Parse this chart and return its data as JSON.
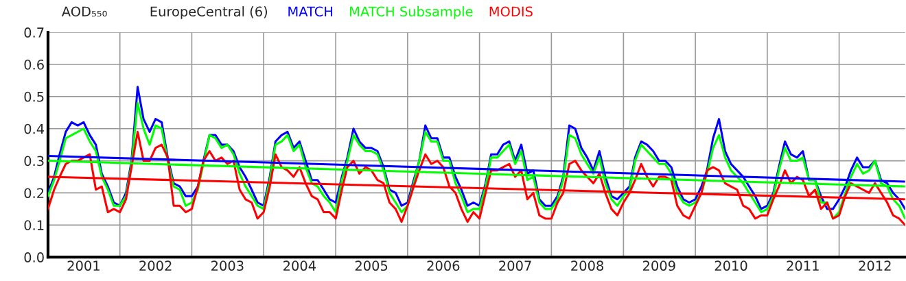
{
  "chart_data": {
    "type": "line",
    "title": "AOD₅₅₀",
    "subtitle": "EuropeCentral (6)",
    "x": [
      "2001-01",
      "2001-02",
      "2001-03",
      "2001-04",
      "2001-05",
      "2001-06",
      "2001-07",
      "2001-08",
      "2001-09",
      "2001-10",
      "2001-11",
      "2001-12",
      "2002-01",
      "2002-02",
      "2002-03",
      "2002-04",
      "2002-05",
      "2002-06",
      "2002-07",
      "2002-08",
      "2002-09",
      "2002-10",
      "2002-11",
      "2002-12",
      "2003-01",
      "2003-02",
      "2003-03",
      "2003-04",
      "2003-05",
      "2003-06",
      "2003-07",
      "2003-08",
      "2003-09",
      "2003-10",
      "2003-11",
      "2003-12",
      "2004-01",
      "2004-02",
      "2004-03",
      "2004-04",
      "2004-05",
      "2004-06",
      "2004-07",
      "2004-08",
      "2004-09",
      "2004-10",
      "2004-11",
      "2004-12",
      "2005-01",
      "2005-02",
      "2005-03",
      "2005-04",
      "2005-05",
      "2005-06",
      "2005-07",
      "2005-08",
      "2005-09",
      "2005-10",
      "2005-11",
      "2005-12",
      "2006-01",
      "2006-02",
      "2006-03",
      "2006-04",
      "2006-05",
      "2006-06",
      "2006-07",
      "2006-08",
      "2006-09",
      "2006-10",
      "2006-11",
      "2006-12",
      "2007-01",
      "2007-02",
      "2007-03",
      "2007-04",
      "2007-05",
      "2007-06",
      "2007-07",
      "2007-08",
      "2007-09",
      "2007-10",
      "2007-11",
      "2007-12",
      "2008-01",
      "2008-02",
      "2008-03",
      "2008-04",
      "2008-05",
      "2008-06",
      "2008-07",
      "2008-08",
      "2008-09",
      "2008-10",
      "2008-11",
      "2008-12",
      "2009-01",
      "2009-02",
      "2009-03",
      "2009-04",
      "2009-05",
      "2009-06",
      "2009-07",
      "2009-08",
      "2009-09",
      "2009-10",
      "2009-11",
      "2009-12",
      "2010-01",
      "2010-02",
      "2010-03",
      "2010-04",
      "2010-05",
      "2010-06",
      "2010-07",
      "2010-08",
      "2010-09",
      "2010-10",
      "2010-11",
      "2010-12",
      "2011-01",
      "2011-02",
      "2011-03",
      "2011-04",
      "2011-05",
      "2011-06",
      "2011-07",
      "2011-08",
      "2011-09",
      "2011-10",
      "2011-11",
      "2011-12",
      "2012-01",
      "2012-02",
      "2012-03",
      "2012-04",
      "2012-05",
      "2012-06",
      "2012-07",
      "2012-08",
      "2012-09",
      "2012-10",
      "2012-11",
      "2012-12"
    ],
    "xlim": [
      "2001-01-01",
      "2012-12-01"
    ],
    "ylim": [
      0,
      0.7
    ],
    "xticks": [
      {
        "value": "2001-07-01",
        "label": "2001"
      },
      {
        "value": "2002-07-01",
        "label": "2002"
      },
      {
        "value": "2003-07-01",
        "label": "2003"
      },
      {
        "value": "2004-07-01",
        "label": "2004"
      },
      {
        "value": "2005-07-01",
        "label": "2005"
      },
      {
        "value": "2006-07-01",
        "label": "2006"
      },
      {
        "value": "2007-07-01",
        "label": "2007"
      },
      {
        "value": "2008-07-01",
        "label": "2008"
      },
      {
        "value": "2009-07-01",
        "label": "2009"
      },
      {
        "value": "2010-07-01",
        "label": "2010"
      },
      {
        "value": "2011-07-01",
        "label": "2011"
      },
      {
        "value": "2012-07-01",
        "label": "2012"
      },
      {
        "value": "2002-01-01",
        "label": null
      },
      {
        "value": "2003-01-01",
        "label": null
      },
      {
        "value": "2004-01-01",
        "label": null
      },
      {
        "value": "2005-01-01",
        "label": null
      },
      {
        "value": "2006-01-01",
        "label": null
      },
      {
        "value": "2007-01-01",
        "label": null
      },
      {
        "value": "2008-01-01",
        "label": null
      },
      {
        "value": "2009-01-01",
        "label": null
      },
      {
        "value": "2010-01-01",
        "label": null
      },
      {
        "value": "2011-01-01",
        "label": null
      },
      {
        "value": "2012-01-01",
        "label": null
      }
    ],
    "yticks": [
      {
        "value": 0,
        "label": "0.0"
      },
      0.1,
      0.2,
      0.3,
      0.4,
      0.5,
      0.6,
      0.7
    ],
    "grid": true,
    "marker": "none",
    "line_style": "solid",
    "series": [
      {
        "name": "MATCH",
        "color": "#0000ff",
        "values": [
          0.2,
          0.25,
          0.32,
          0.39,
          0.42,
          0.41,
          0.42,
          0.38,
          0.35,
          0.26,
          0.22,
          0.17,
          0.16,
          0.2,
          0.3,
          0.53,
          0.43,
          0.39,
          0.43,
          0.42,
          0.31,
          0.23,
          0.22,
          0.19,
          0.19,
          0.22,
          0.3,
          0.38,
          0.38,
          0.35,
          0.35,
          0.33,
          0.28,
          0.25,
          0.21,
          0.17,
          0.16,
          0.25,
          0.36,
          0.38,
          0.39,
          0.34,
          0.36,
          0.3,
          0.24,
          0.24,
          0.21,
          0.18,
          0.17,
          0.25,
          0.31,
          0.4,
          0.36,
          0.34,
          0.34,
          0.33,
          0.28,
          0.21,
          0.2,
          0.16,
          0.17,
          0.24,
          0.3,
          0.41,
          0.37,
          0.37,
          0.31,
          0.31,
          0.25,
          0.21,
          0.16,
          0.17,
          0.16,
          0.23,
          0.32,
          0.32,
          0.35,
          0.36,
          0.3,
          0.35,
          0.26,
          0.27,
          0.18,
          0.16,
          0.16,
          0.19,
          0.25,
          0.41,
          0.4,
          0.34,
          0.31,
          0.27,
          0.33,
          0.25,
          0.19,
          0.18,
          0.2,
          0.22,
          0.31,
          0.36,
          0.35,
          0.33,
          0.3,
          0.3,
          0.28,
          0.22,
          0.18,
          0.17,
          0.18,
          0.22,
          0.27,
          0.37,
          0.43,
          0.33,
          0.29,
          0.27,
          0.25,
          0.22,
          0.19,
          0.15,
          0.16,
          0.2,
          0.28,
          0.36,
          0.32,
          0.31,
          0.33,
          0.24,
          0.24,
          0.19,
          0.15,
          0.15,
          0.18,
          0.22,
          0.27,
          0.31,
          0.28,
          0.28,
          0.3,
          0.24,
          0.23,
          0.2,
          0.18,
          0.15
        ]
      },
      {
        "name": "MATCH Subsample",
        "color": "#00ff00",
        "values": [
          0.19,
          0.24,
          0.3,
          0.37,
          0.38,
          0.39,
          0.4,
          0.36,
          0.33,
          0.25,
          0.21,
          0.16,
          0.16,
          0.19,
          0.29,
          0.48,
          0.4,
          0.35,
          0.41,
          0.4,
          0.3,
          0.22,
          0.21,
          0.16,
          0.17,
          0.21,
          0.29,
          0.38,
          0.37,
          0.34,
          0.35,
          0.32,
          0.26,
          0.22,
          0.19,
          0.16,
          0.15,
          0.24,
          0.35,
          0.36,
          0.38,
          0.33,
          0.35,
          0.28,
          0.23,
          0.22,
          0.19,
          0.17,
          0.14,
          0.24,
          0.3,
          0.38,
          0.35,
          0.33,
          0.33,
          0.32,
          0.27,
          0.2,
          0.17,
          0.14,
          0.16,
          0.23,
          0.3,
          0.39,
          0.36,
          0.36,
          0.3,
          0.3,
          0.23,
          0.19,
          0.14,
          0.15,
          0.15,
          0.22,
          0.31,
          0.31,
          0.33,
          0.35,
          0.29,
          0.33,
          0.24,
          0.25,
          0.17,
          0.15,
          0.15,
          0.18,
          0.24,
          0.38,
          0.37,
          0.32,
          0.29,
          0.26,
          0.31,
          0.23,
          0.18,
          0.16,
          0.19,
          0.21,
          0.3,
          0.35,
          0.33,
          0.31,
          0.29,
          0.29,
          0.26,
          0.2,
          0.17,
          0.16,
          0.17,
          0.2,
          0.26,
          0.34,
          0.38,
          0.31,
          0.27,
          0.25,
          0.23,
          0.2,
          0.17,
          0.14,
          0.15,
          0.19,
          0.27,
          0.34,
          0.3,
          0.3,
          0.31,
          0.24,
          0.24,
          0.17,
          0.17,
          0.12,
          0.14,
          0.2,
          0.25,
          0.29,
          0.26,
          0.27,
          0.3,
          0.23,
          0.22,
          0.18,
          0.16,
          0.12
        ]
      },
      {
        "name": "MODIS",
        "color": "#ff0000",
        "values": [
          0.15,
          0.21,
          0.25,
          0.29,
          0.3,
          0.3,
          0.31,
          0.32,
          0.21,
          0.22,
          0.14,
          0.15,
          0.14,
          0.18,
          0.28,
          0.39,
          0.3,
          0.3,
          0.34,
          0.35,
          0.31,
          0.16,
          0.16,
          0.14,
          0.15,
          0.22,
          0.3,
          0.33,
          0.3,
          0.31,
          0.29,
          0.3,
          0.21,
          0.18,
          0.17,
          0.12,
          0.14,
          0.22,
          0.32,
          0.28,
          0.27,
          0.25,
          0.28,
          0.23,
          0.19,
          0.18,
          0.14,
          0.14,
          0.12,
          0.21,
          0.28,
          0.3,
          0.26,
          0.28,
          0.27,
          0.24,
          0.23,
          0.17,
          0.15,
          0.11,
          0.16,
          0.22,
          0.27,
          0.32,
          0.29,
          0.3,
          0.28,
          0.22,
          0.2,
          0.15,
          0.11,
          0.14,
          0.12,
          0.2,
          0.27,
          0.27,
          0.28,
          0.29,
          0.25,
          0.27,
          0.18,
          0.2,
          0.13,
          0.12,
          0.12,
          0.17,
          0.2,
          0.29,
          0.3,
          0.27,
          0.25,
          0.23,
          0.26,
          0.2,
          0.15,
          0.13,
          0.17,
          0.2,
          0.24,
          0.29,
          0.25,
          0.22,
          0.25,
          0.25,
          0.24,
          0.16,
          0.13,
          0.12,
          0.16,
          0.2,
          0.27,
          0.28,
          0.27,
          0.23,
          0.22,
          0.21,
          0.16,
          0.15,
          0.12,
          0.13,
          0.13,
          0.18,
          0.22,
          0.27,
          0.23,
          0.25,
          0.24,
          0.19,
          0.21,
          0.15,
          0.17,
          0.12,
          0.13,
          0.19,
          0.23,
          0.22,
          0.21,
          0.2,
          0.23,
          0.2,
          0.17,
          0.13,
          0.12,
          0.1
        ]
      },
      {
        "color": "#0000ff",
        "x": [
          "2001-01",
          "2012-12"
        ],
        "values": [
          0.315,
          0.235
        ]
      },
      {
        "color": "#00ff00",
        "x": [
          "2001-01",
          "2012-12"
        ],
        "values": [
          0.3,
          0.22
        ]
      },
      {
        "color": "#ff0000",
        "x": [
          "2001-01",
          "2012-12"
        ],
        "values": [
          0.25,
          0.18
        ]
      }
    ]
  }
}
